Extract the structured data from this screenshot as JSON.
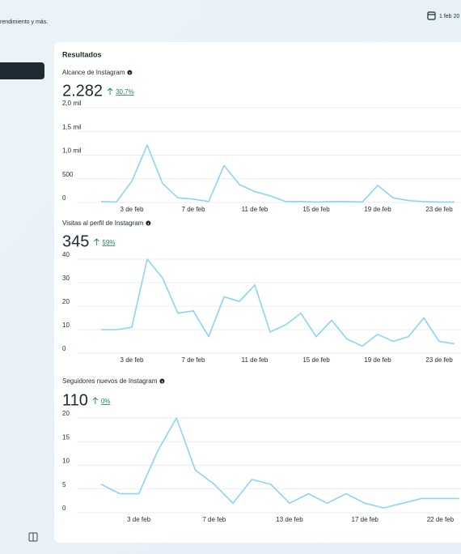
{
  "header": {
    "subtitle": "rendimiento y más.",
    "date": "1 feb 20"
  },
  "panel": {
    "title": "Resultados"
  },
  "chart_data": [
    {
      "type": "line",
      "title": "Alcance de Instagram",
      "total": "2.282",
      "change": "30,7%",
      "color": "#8dd3f5",
      "categories": [
        null,
        null,
        "3 de feb",
        null,
        null,
        null,
        "7 de feb",
        null,
        null,
        null,
        "11 de feb",
        null,
        null,
        null,
        "15 de feb",
        null,
        null,
        null,
        "19 de feb",
        null,
        null,
        null,
        "23 de feb",
        null
      ],
      "values": [
        20,
        10,
        450,
        1210,
        400,
        100,
        70,
        20,
        780,
        380,
        230,
        140,
        20,
        20,
        10,
        20,
        20,
        10,
        360,
        100,
        40,
        20,
        10,
        10
      ],
      "ylim": [
        0,
        2000
      ],
      "yticks": [
        0,
        500,
        {
          "value": 1000,
          "label": "1,0 mil"
        },
        {
          "value": 1500,
          "label": "1,5 mil"
        },
        {
          "value": 2000,
          "label": "2,0 mil"
        }
      ],
      "grid": true
    },
    {
      "type": "line",
      "title": "Visitas al perfil de Instagram",
      "total": "345",
      "change": "59%",
      "color": "#8dd3f5",
      "categories": [
        null,
        null,
        "3 de feb",
        null,
        null,
        null,
        "7 de feb",
        null,
        null,
        null,
        "11 de feb",
        null,
        null,
        null,
        "15 de feb",
        null,
        null,
        null,
        "19 de feb",
        null,
        null,
        null,
        "23 de feb",
        null
      ],
      "values": [
        10,
        10,
        11,
        40,
        32,
        17,
        18,
        7,
        24,
        22,
        29,
        9,
        12,
        17,
        7,
        14,
        6,
        3,
        8,
        5,
        7,
        15,
        5,
        4
      ],
      "ylim": [
        0,
        40
      ],
      "yticks": [
        0,
        10,
        20,
        30,
        40
      ],
      "grid": true
    },
    {
      "type": "line",
      "title": "Seguidores nuevos de Instagram",
      "total": "110",
      "change": "0%",
      "color": "#8dd3f5",
      "categories": [
        null,
        null,
        "3 de feb",
        null,
        null,
        null,
        "7 de feb",
        null,
        null,
        null,
        "13 de feb",
        null,
        null,
        null,
        "17 de feb",
        null,
        null,
        null,
        "22 de feb",
        null
      ],
      "values": [
        6,
        4,
        4,
        13,
        20,
        9,
        6,
        2,
        7,
        6,
        2,
        4,
        2,
        4,
        2,
        1,
        2,
        3,
        3,
        3
      ],
      "ylim": [
        0,
        20
      ],
      "yticks": [
        0,
        5,
        10,
        15,
        20
      ],
      "grid": true
    }
  ]
}
